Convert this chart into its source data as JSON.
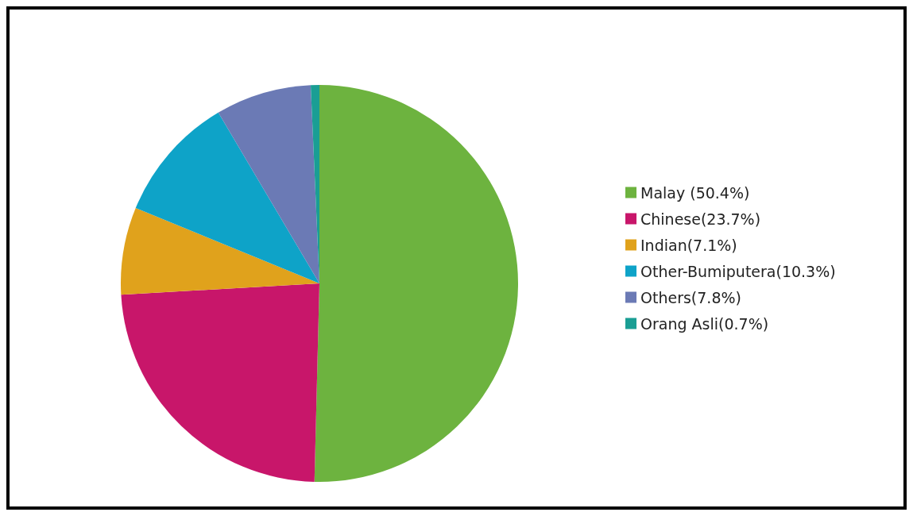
{
  "chart_data": {
    "type": "pie",
    "categories": [
      "Malay (50.4%)",
      "Chinese(23.7%)",
      "Indian(7.1%)",
      "Other-Bumiputera(10.3%)",
      "Others(7.8%)",
      "Orang Asli(0.7%)"
    ],
    "values": [
      50.4,
      23.7,
      7.1,
      10.3,
      7.8,
      0.7
    ],
    "colors": [
      "#6db33f",
      "#c8166a",
      "#e0a21c",
      "#0ea3c8",
      "#6b7ab5",
      "#1a9e94"
    ],
    "legend": "right"
  }
}
